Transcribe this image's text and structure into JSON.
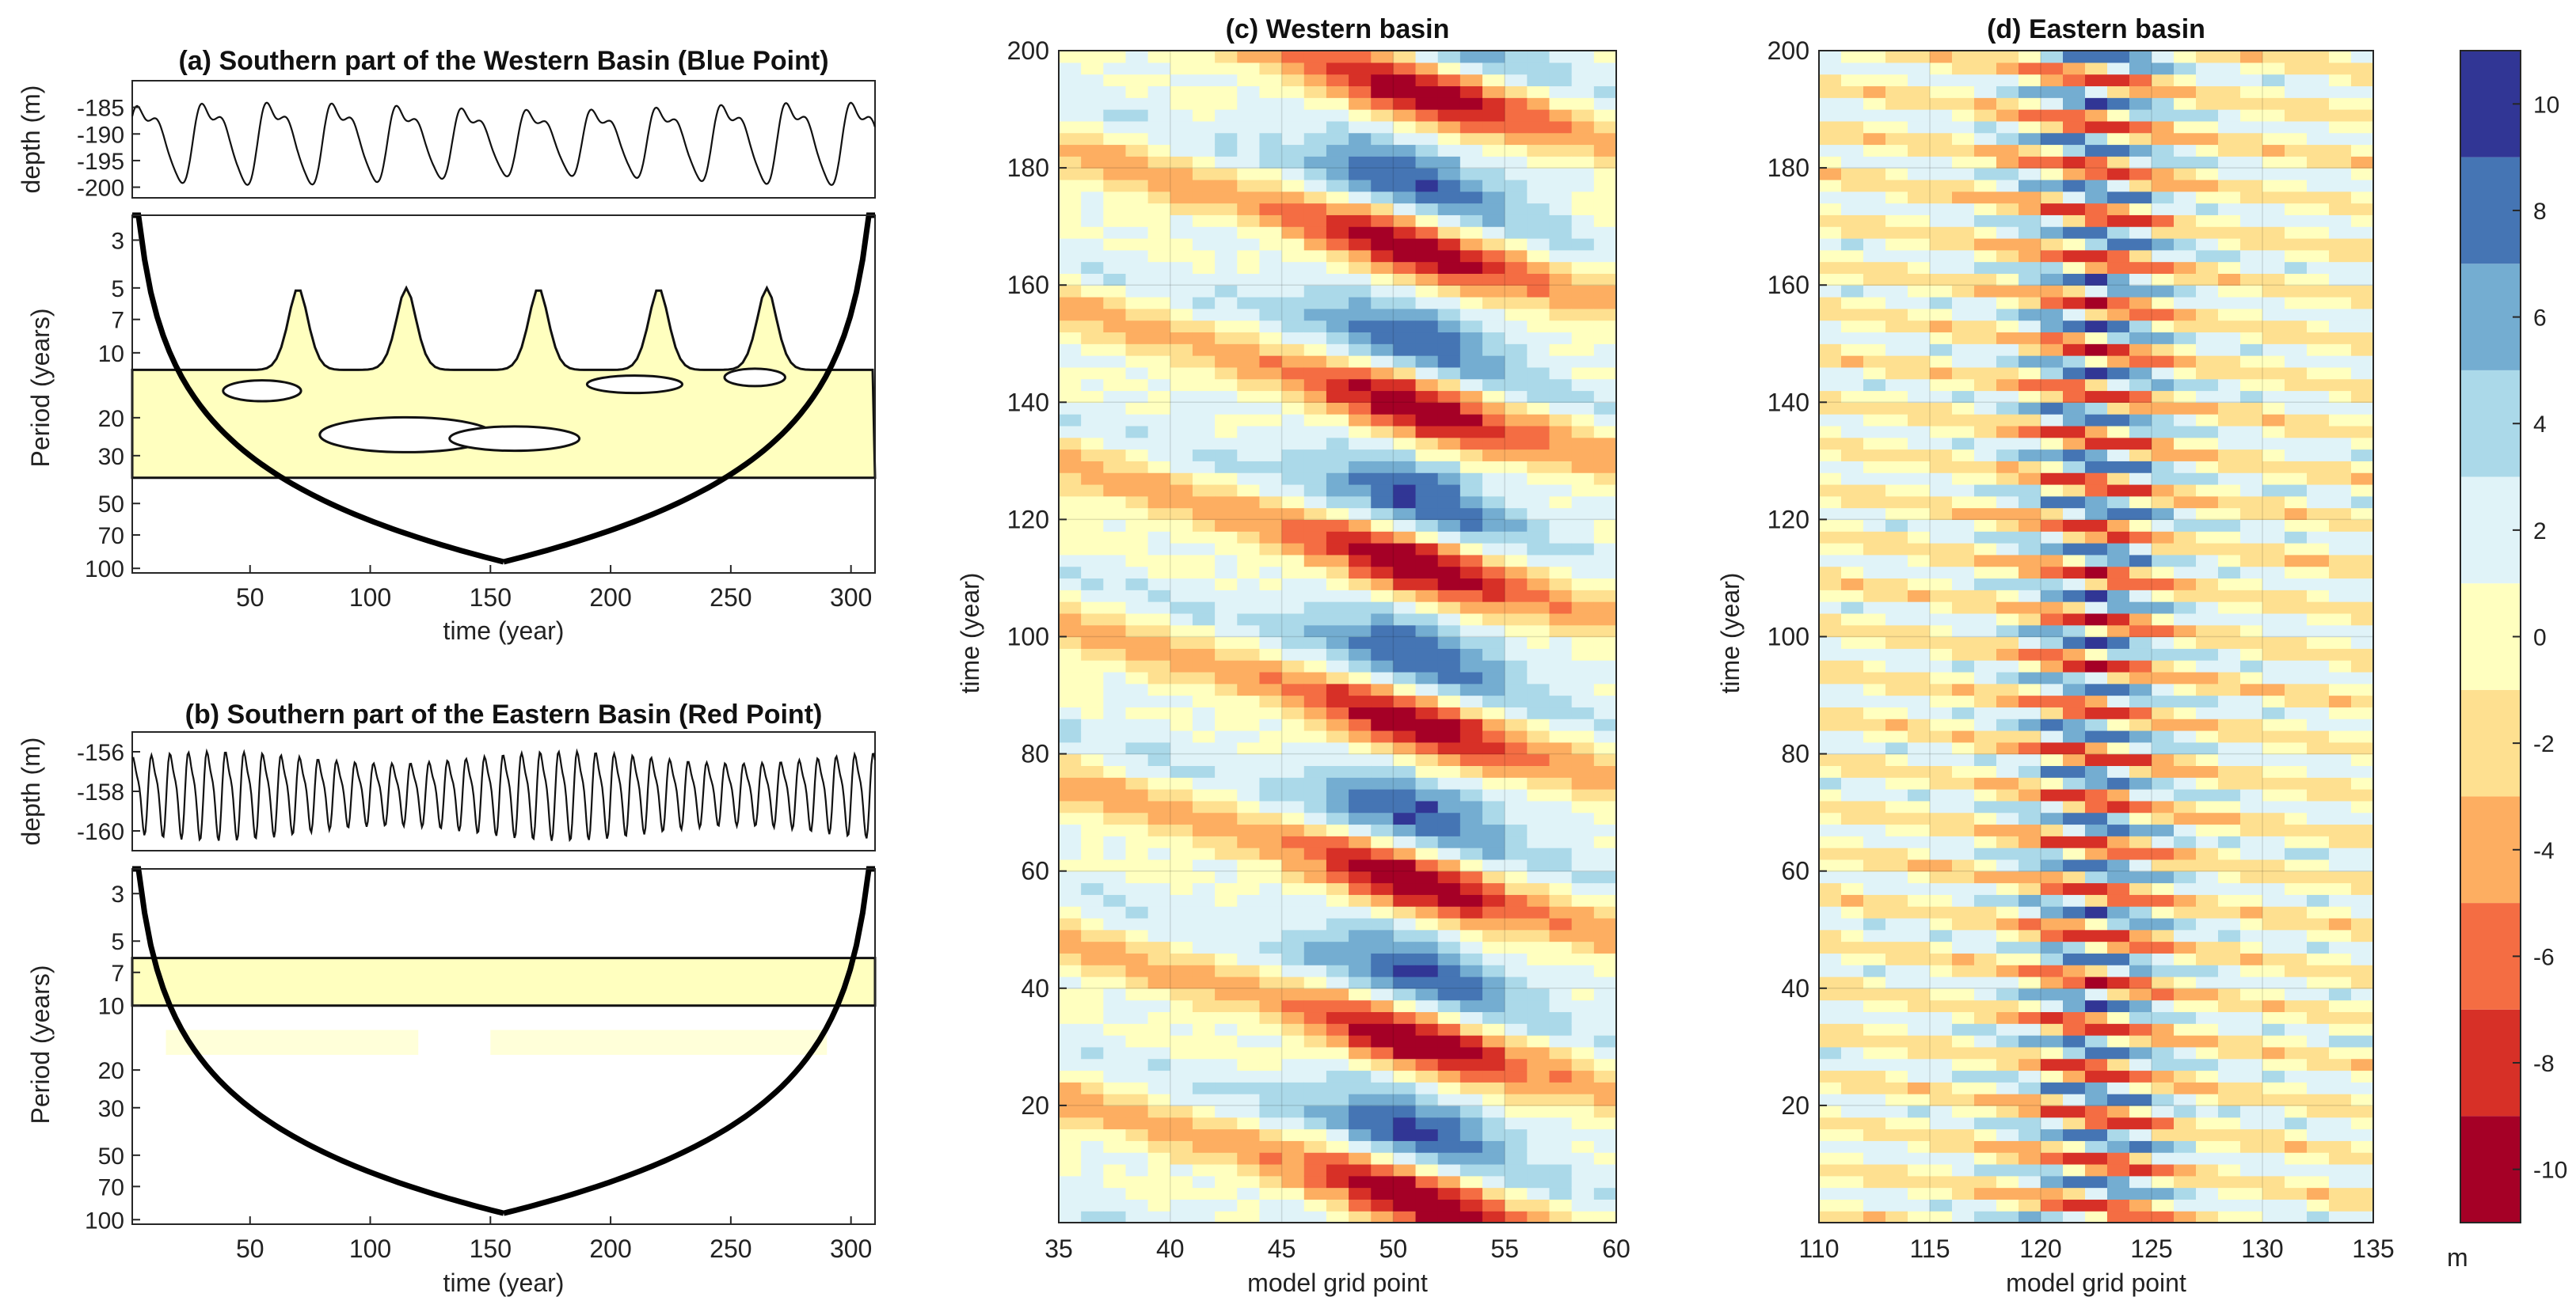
{
  "chart_data": [
    {
      "id": "a",
      "type": "line",
      "title": "(a) Southern part of the Western Basin (Blue Point)",
      "ylabel": "depth (m)",
      "xlim": [
        1,
        310
      ],
      "ylim": [
        -202,
        -180
      ],
      "yticks": [
        -185,
        -190,
        -195,
        -200
      ],
      "series": [
        {
          "name": "depth",
          "period_years": 27,
          "mean": -191,
          "amplitude": 9.5
        }
      ],
      "wavelet": {
        "type": "heatmap",
        "ylabel": "Period (years)",
        "xlabel": "time (year)",
        "xlim": [
          1,
          310
        ],
        "ylim": [
          2.3,
          105
        ],
        "yticks": [
          3,
          5,
          7,
          10,
          20,
          30,
          50,
          70,
          100
        ],
        "xticks": [
          50,
          100,
          150,
          200,
          250,
          300
        ],
        "significant_band_periods": [
          5,
          40
        ],
        "peaks_years": [
          70,
          115,
          170,
          220,
          265
        ]
      }
    },
    {
      "id": "b",
      "type": "line",
      "title": "(b) Southern part of the Eastern Basin (Red Point)",
      "ylabel": "depth (m)",
      "xlim": [
        1,
        310
      ],
      "ylim": [
        -161,
        -155
      ],
      "yticks": [
        -156,
        -158,
        -160
      ],
      "series": [
        {
          "name": "depth",
          "period_years": 7.7,
          "mean": -158,
          "amplitude": 2.6
        }
      ],
      "wavelet": {
        "type": "heatmap",
        "ylabel": "Period (years)",
        "xlabel": "time (year)",
        "xlim": [
          1,
          310
        ],
        "ylim": [
          2.3,
          105
        ],
        "yticks": [
          3,
          5,
          7,
          10,
          20,
          30,
          50,
          70,
          100
        ],
        "xticks": [
          50,
          100,
          150,
          200,
          250,
          300
        ],
        "significant_band_periods": [
          6,
          10
        ],
        "weak_band_periods": [
          13,
          17
        ]
      }
    },
    {
      "id": "c",
      "type": "heatmap",
      "title": "(c) Western basin",
      "xlabel": "model grid point",
      "ylabel": "time (year)",
      "xlim": [
        35,
        60
      ],
      "ylim": [
        0,
        200
      ],
      "xticks": [
        35,
        40,
        45,
        50,
        55,
        60
      ],
      "yticks": [
        20,
        40,
        60,
        80,
        100,
        120,
        140,
        160,
        180,
        200
      ],
      "wave_period_years": 27
    },
    {
      "id": "d",
      "type": "heatmap",
      "title": "(d) Eastern basin",
      "xlabel": "model grid point",
      "ylabel": "time (year)",
      "xlim": [
        110,
        135
      ],
      "ylim": [
        0,
        200
      ],
      "xticks": [
        110,
        115,
        120,
        125,
        130,
        135
      ],
      "yticks": [
        20,
        40,
        60,
        80,
        100,
        120,
        140,
        160,
        180,
        200
      ],
      "wave_period_years": 7.7
    }
  ],
  "colorbar": {
    "unit": "m",
    "range": [
      -11,
      11
    ],
    "ticks": [
      10,
      8,
      6,
      4,
      2,
      0,
      -2,
      -4,
      -6,
      -8,
      -10
    ],
    "bounds": [
      -11,
      -9,
      -7,
      -5,
      -3,
      -1,
      1,
      3,
      5,
      7,
      9,
      11
    ],
    "colors": [
      "#a50026",
      "#d73027",
      "#f46d43",
      "#fdae61",
      "#fee090",
      "#ffffbf",
      "#e0f3f8",
      "#abd9e9",
      "#74add1",
      "#4575b4",
      "#313695"
    ]
  }
}
